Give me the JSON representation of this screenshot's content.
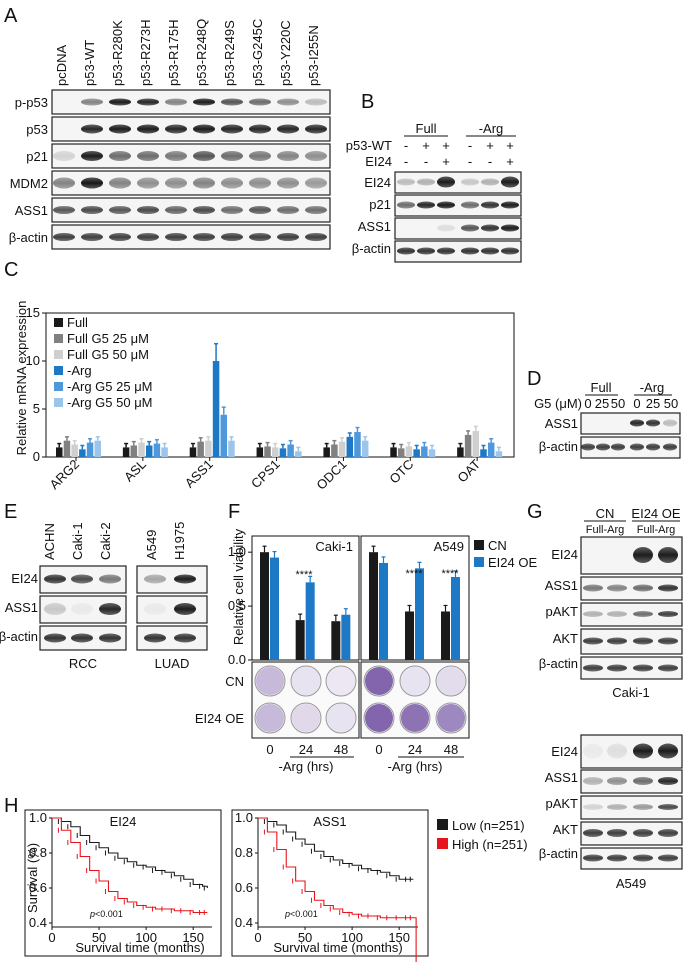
{
  "panels": {
    "A": {
      "letter": "A",
      "lanes": [
        "pcDNA",
        "p53-WT",
        "p53-R280K",
        "p53-R273H",
        "p53-R175H",
        "p53-R248Q",
        "p53-R249S",
        "p53-G245C",
        "p53-Y220C",
        "p53-I255N"
      ],
      "rows": [
        "p-p53",
        "p53",
        "p21",
        "MDM2",
        "ASS1",
        "β-actin"
      ]
    },
    "B": {
      "letter": "B",
      "groups": [
        "Full",
        "-Arg"
      ],
      "treatments": [
        {
          "label": "p53-WT",
          "signs": [
            "-",
            "+",
            "+",
            "-",
            "+",
            "+"
          ]
        },
        {
          "label": "EI24",
          "signs": [
            "-",
            "-",
            "+",
            "-",
            "-",
            "+"
          ]
        }
      ],
      "rows": [
        "EI24",
        "p21",
        "ASS1",
        "β-actin"
      ]
    },
    "C": {
      "letter": "C",
      "ylabel": "Relative mRNA expression",
      "legend": [
        "Full",
        "Full G5 25 μM",
        "Full G5 50 μM",
        "-Arg",
        "-Arg G5 25 μM",
        "-Arg G5 50 μM"
      ]
    },
    "D": {
      "letter": "D",
      "groups": [
        "Full",
        "-Arg"
      ],
      "conc_label": "G5 (μM)",
      "conc": [
        "0",
        "25",
        "50",
        "0",
        "25",
        "50"
      ],
      "rows": [
        "ASS1",
        "β-actin"
      ]
    },
    "E": {
      "letter": "E",
      "lanes": [
        "ACHN",
        "Caki-1",
        "Caki-2",
        "A549",
        "H1975"
      ],
      "rows": [
        "EI24",
        "ASS1",
        "β-actin"
      ],
      "groups": [
        "RCC",
        "LUAD"
      ]
    },
    "F": {
      "letter": "F",
      "ylabel": "Relative cell viability",
      "legend": [
        "CN",
        "EI24 OE"
      ],
      "cells": [
        "Caki-1",
        "A549"
      ],
      "xticks": [
        "0",
        "24",
        "48"
      ],
      "xlabel": "-Arg (hrs)",
      "stars": "****",
      "rows": [
        "CN",
        "EI24 OE"
      ]
    },
    "G": {
      "letter": "G",
      "headers": [
        "CN",
        "EI24 OE"
      ],
      "sub": [
        "Full-Arg",
        "Full-Arg"
      ],
      "rows": [
        "EI24",
        "ASS1",
        "pAKT",
        "AKT",
        "β-actin"
      ],
      "cells": [
        "Caki-1",
        "A549"
      ]
    },
    "H": {
      "letter": "H",
      "titles": [
        "EI24",
        "ASS1"
      ],
      "ylabel": "Survival (%)",
      "xlabel": "Survival time (months)",
      "pval_prefix": "p",
      "pval": "<0.001",
      "legend": [
        "Low (n=251)",
        "High (n=251)"
      ]
    }
  },
  "colors": {
    "black": "#1a1a1a",
    "dgray": "#808080",
    "lgray": "#cfcfcf",
    "blue": "#1d78c6",
    "mblue": "#4f98db",
    "lblue": "#9cc5ec",
    "crystal": "#7b5ea8",
    "red": "#e8141b"
  },
  "chart_data": [
    {
      "type": "bar",
      "panel": "C",
      "ylabel": "Relative mRNA expression",
      "ylim": [
        0,
        15
      ],
      "yticks": [
        0,
        5,
        10,
        15
      ],
      "categories": [
        "ARG2",
        "ASL",
        "ASS1",
        "CPS1",
        "ODC1",
        "OTC",
        "OAT"
      ],
      "series": [
        {
          "name": "Full",
          "values": [
            1.0,
            1.0,
            1.0,
            1.0,
            1.0,
            1.0,
            1.0
          ]
        },
        {
          "name": "Full G5 25 μM",
          "values": [
            1.7,
            1.2,
            1.6,
            1.1,
            1.3,
            0.9,
            2.3
          ]
        },
        {
          "name": "Full G5 50 μM",
          "values": [
            1.3,
            1.5,
            1.7,
            1.0,
            1.6,
            1.1,
            2.7
          ]
        },
        {
          "name": "-Arg",
          "values": [
            0.8,
            1.2,
            10.0,
            0.9,
            2.1,
            0.8,
            0.8
          ]
        },
        {
          "name": "-Arg G5 25 μM",
          "values": [
            1.5,
            1.4,
            4.4,
            1.3,
            2.6,
            1.1,
            1.5
          ]
        },
        {
          "name": "-Arg G5 50 μM",
          "values": [
            1.7,
            1.0,
            1.7,
            0.6,
            1.7,
            0.8,
            0.6
          ]
        }
      ]
    },
    {
      "type": "bar",
      "panel": "F",
      "title": "Caki-1",
      "ylabel": "Relative cell viability",
      "ylim": [
        0,
        1.0
      ],
      "yticks": [
        0,
        0.5,
        1.0
      ],
      "categories": [
        "0",
        "24",
        "48"
      ],
      "series": [
        {
          "name": "CN",
          "values": [
            1.0,
            0.37,
            0.36
          ]
        },
        {
          "name": "EI24 OE",
          "values": [
            0.95,
            0.72,
            0.42
          ]
        }
      ]
    },
    {
      "type": "bar",
      "panel": "F",
      "title": "A549",
      "ylim": [
        0,
        1.0
      ],
      "categories": [
        "0",
        "24",
        "48"
      ],
      "series": [
        {
          "name": "CN",
          "values": [
            1.0,
            0.45,
            0.45
          ]
        },
        {
          "name": "EI24 OE",
          "values": [
            0.9,
            0.85,
            0.77
          ]
        }
      ]
    },
    {
      "type": "line",
      "panel": "H",
      "title": "EI24",
      "xlabel": "Survival time (months)",
      "ylabel": "Survival (%)",
      "xlim": [
        0,
        170
      ],
      "ylim": [
        0.4,
        1.0
      ],
      "xticks": [
        0,
        50,
        100,
        150
      ],
      "yticks": [
        0.4,
        0.6,
        0.8,
        1.0
      ],
      "series": [
        {
          "name": "Low (n=251)",
          "x": [
            0,
            10,
            20,
            30,
            40,
            50,
            60,
            70,
            80,
            90,
            100,
            110,
            120,
            130,
            140,
            150,
            160,
            165
          ],
          "y": [
            1.0,
            0.98,
            0.95,
            0.9,
            0.86,
            0.83,
            0.8,
            0.77,
            0.75,
            0.73,
            0.72,
            0.7,
            0.69,
            0.67,
            0.65,
            0.62,
            0.61,
            0.6
          ]
        },
        {
          "name": "High (n=251)",
          "x": [
            0,
            10,
            20,
            30,
            40,
            50,
            60,
            70,
            80,
            90,
            100,
            110,
            120,
            130,
            140,
            150,
            160,
            165
          ],
          "y": [
            1.0,
            0.93,
            0.86,
            0.78,
            0.7,
            0.64,
            0.58,
            0.54,
            0.52,
            0.5,
            0.49,
            0.48,
            0.48,
            0.47,
            0.47,
            0.46,
            0.46,
            0.46
          ]
        }
      ]
    },
    {
      "type": "line",
      "panel": "H",
      "title": "ASS1",
      "xlabel": "Survival time (months)",
      "xlim": [
        0,
        170
      ],
      "ylim": [
        0.4,
        1.0
      ],
      "xticks": [
        0,
        50,
        100,
        150
      ],
      "yticks": [
        0.4,
        0.6,
        0.8,
        1.0
      ],
      "series": [
        {
          "name": "Low (n=251)",
          "x": [
            0,
            10,
            20,
            30,
            40,
            50,
            60,
            70,
            80,
            90,
            100,
            110,
            120,
            130,
            140,
            150,
            160,
            165
          ],
          "y": [
            1.0,
            0.98,
            0.96,
            0.92,
            0.88,
            0.85,
            0.81,
            0.78,
            0.76,
            0.74,
            0.73,
            0.71,
            0.7,
            0.69,
            0.67,
            0.65,
            0.65,
            0.65
          ]
        },
        {
          "name": "High (n=251)",
          "x": [
            0,
            10,
            20,
            30,
            40,
            50,
            60,
            70,
            80,
            90,
            100,
            110,
            120,
            130,
            140,
            150,
            160,
            165,
            168
          ],
          "y": [
            1.0,
            0.92,
            0.82,
            0.72,
            0.64,
            0.58,
            0.53,
            0.5,
            0.48,
            0.46,
            0.45,
            0.44,
            0.44,
            0.43,
            0.43,
            0.43,
            0.43,
            0.43,
            0.0
          ]
        }
      ]
    }
  ]
}
